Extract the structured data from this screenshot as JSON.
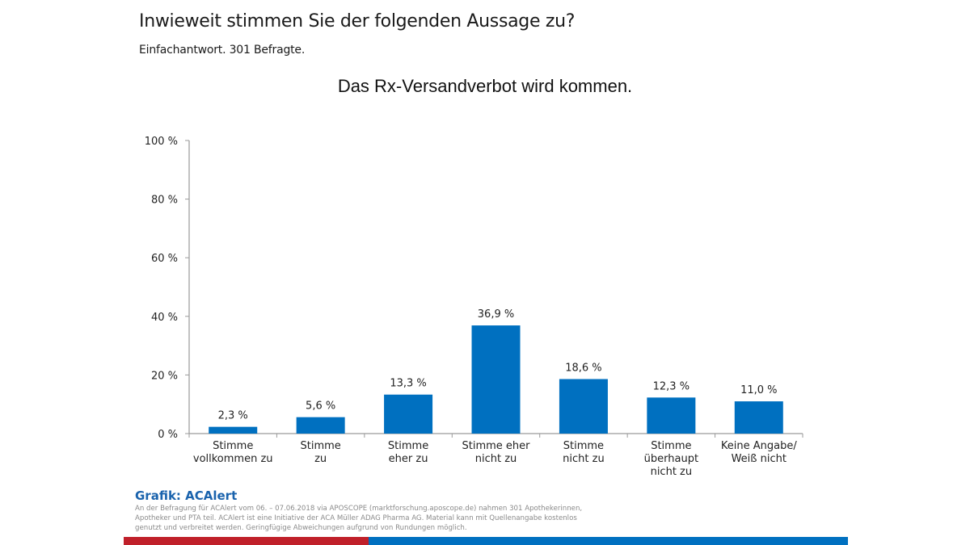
{
  "header": {
    "question": "Inwieweit stimmen Sie der folgenden Aussage zu?",
    "subtitle": "Einfachantwort. 301 Befragte."
  },
  "chart_data": {
    "type": "bar",
    "title": "Das Rx-Versandverbot wird kommen.",
    "xlabel": "",
    "ylabel": "",
    "ylim": [
      0,
      100
    ],
    "yticks": [
      0,
      20,
      40,
      60,
      80,
      100
    ],
    "ytick_labels": [
      "0 %",
      "20 %",
      "40 %",
      "60 %",
      "80 %",
      "100 %"
    ],
    "grid": false,
    "categories": [
      [
        "Stimme",
        "vollkommen zu"
      ],
      [
        "Stimme",
        "zu"
      ],
      [
        "Stimme",
        "eher zu"
      ],
      [
        "Stimme eher",
        "nicht zu"
      ],
      [
        "Stimme",
        "nicht zu"
      ],
      [
        "Stimme",
        "überhaupt",
        "nicht zu"
      ],
      [
        "Keine Angabe/",
        "Weiß nicht"
      ]
    ],
    "values": [
      2.3,
      5.6,
      13.3,
      36.9,
      18.6,
      12.3,
      11.0
    ],
    "data_labels": [
      "2,3 %",
      "5,6 %",
      "13,3 %",
      "36,9 %",
      "18,6 %",
      "12,3 %",
      "11,0 %"
    ],
    "bar_color": "#0070c0"
  },
  "footer": {
    "source_title": "Grafik: ACAlert",
    "source_text": "An der Befragung für ACAlert vom 06. – 07.06.2018 via APOSCOPE (marktforschung.aposcope.de) nahmen 301 Apothekerinnen, Apotheker und PTA teil. ACAlert ist eine Initiative der ACA Müller ADAG Pharma AG. Material kann mit Quellenangabe kostenlos genutzt und verbreitet werden. Geringfügige Abweichungen aufgrund von Rundungen möglich.",
    "stripe_colors": [
      "#c0202a",
      "#0070c0"
    ]
  }
}
